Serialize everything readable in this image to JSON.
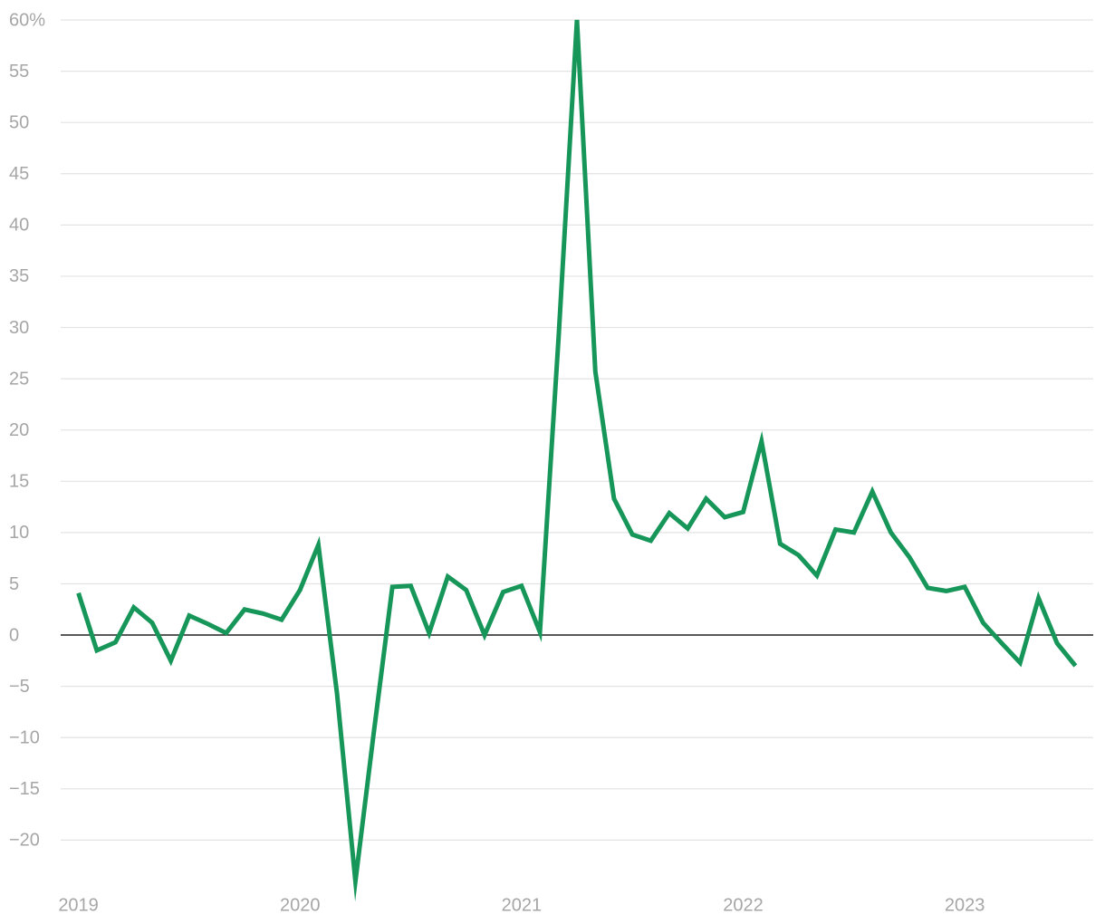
{
  "chart_data": {
    "type": "line",
    "x": [
      2019,
      2019.083,
      2019.167,
      2019.25,
      2019.333,
      2019.417,
      2019.5,
      2019.583,
      2019.667,
      2019.75,
      2019.833,
      2019.917,
      2020,
      2020.083,
      2020.167,
      2020.25,
      2020.333,
      2020.417,
      2020.5,
      2020.583,
      2020.667,
      2020.75,
      2020.833,
      2020.917,
      2021,
      2021.083,
      2021.167,
      2021.25,
      2021.333,
      2021.417,
      2021.5,
      2021.583,
      2021.667,
      2021.75,
      2021.833,
      2021.917,
      2022,
      2022.083,
      2022.167,
      2022.25,
      2022.333,
      2022.417,
      2022.5,
      2022.583,
      2022.667,
      2022.75,
      2022.833,
      2022.917,
      2023,
      2023.083,
      2023.167,
      2023.25,
      2023.333,
      2023.417,
      2023.5
    ],
    "series": [
      {
        "color": "#17965a",
        "values": [
          4.1,
          -1.5,
          -0.7,
          2.7,
          1.2,
          -2.5,
          1.9,
          1.1,
          0.2,
          2.5,
          2.1,
          1.5,
          4.4,
          8.8,
          -5.7,
          -24,
          -9.5,
          4.7,
          4.8,
          0.2,
          5.7,
          4.4,
          0,
          4.2,
          4.8,
          0.3,
          29,
          60,
          25.7,
          13.3,
          9.8,
          9.2,
          11.9,
          10.4,
          13.3,
          11.5,
          12,
          18.9,
          8.9,
          7.8,
          5.8,
          10.3,
          10,
          14,
          10,
          7.6,
          4.6,
          4.3,
          4.7,
          1.2,
          -0.8,
          -2.7,
          3.6,
          -0.8,
          -3
        ]
      }
    ],
    "xlim": [
      2018.92,
      2023.58
    ],
    "xticks": [
      2019,
      2020,
      2021,
      2022,
      2023
    ],
    "ylim": [
      -25,
      60
    ],
    "yticks": [
      {
        "value": 60,
        "label": "60%"
      },
      55,
      50,
      45,
      40,
      35,
      30,
      25,
      20,
      15,
      10,
      5,
      0,
      {
        "value": -5,
        "label": "−5"
      },
      {
        "value": -10,
        "label": "−10"
      },
      {
        "value": -15,
        "label": "−15"
      },
      {
        "value": -20,
        "label": "−20"
      }
    ],
    "grid": true
  }
}
